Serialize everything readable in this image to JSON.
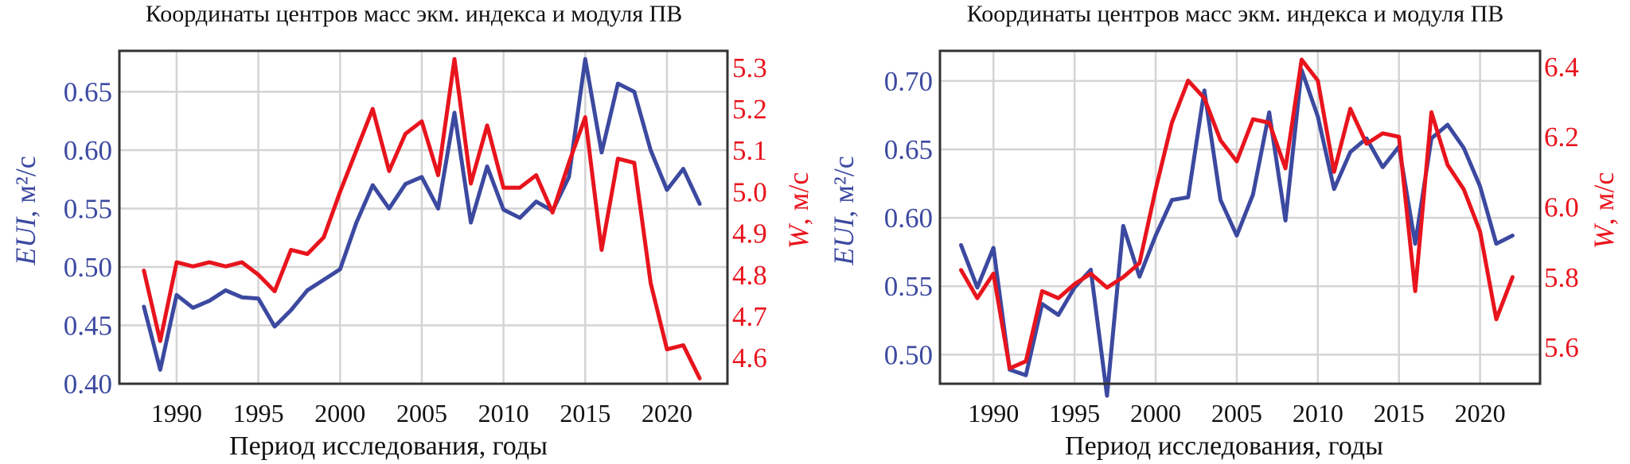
{
  "colors": {
    "left_series": "#3c49a0",
    "right_series": "#e8141d",
    "grid": "#d4d4d4",
    "text": "#111111"
  },
  "chart_data": [
    {
      "type": "line",
      "title": "Координаты центров масс экм. индекса и модуля ПВ",
      "xlabel": "Период исследования, годы",
      "ylabel_left_name": "EUI",
      "ylabel_left_unit": ", м²/с",
      "ylabel_right_name": "W",
      "ylabel_right_unit": ", м/с",
      "xlim": [
        1986.5,
        2023.7
      ],
      "ylim_left": [
        0.4,
        0.685
      ],
      "ylim_right": [
        4.537,
        5.34
      ],
      "x_ticks": [
        1990,
        1995,
        2000,
        2005,
        2010,
        2015,
        2020
      ],
      "y_left_ticks": [
        "0.40",
        "0.45",
        "0.50",
        "0.55",
        "0.60",
        "0.65"
      ],
      "y_right_ticks": [
        "4.6",
        "4.7",
        "4.8",
        "4.9",
        "5.0",
        "5.1",
        "5.2",
        "5.3"
      ],
      "x": [
        1988,
        1989,
        1990,
        1991,
        1992,
        1993,
        1994,
        1995,
        1996,
        1997,
        1998,
        1999,
        2000,
        2001,
        2002,
        2003,
        2004,
        2005,
        2006,
        2007,
        2008,
        2009,
        2010,
        2011,
        2012,
        2013,
        2014,
        2015,
        2016,
        2017,
        2018,
        2019,
        2020,
        2021,
        2022
      ],
      "series": [
        {
          "axis": "left",
          "values": [
            0.466,
            0.412,
            0.476,
            0.465,
            0.471,
            0.48,
            0.474,
            0.473,
            0.449,
            0.463,
            0.48,
            0.489,
            0.498,
            0.538,
            0.57,
            0.55,
            0.571,
            0.577,
            0.55,
            0.632,
            0.538,
            0.586,
            0.549,
            0.542,
            0.556,
            0.548,
            0.577,
            0.678,
            0.598,
            0.657,
            0.65,
            0.6,
            0.566,
            0.584,
            0.554
          ]
        },
        {
          "axis": "right",
          "values": [
            4.81,
            4.64,
            4.83,
            4.82,
            4.83,
            4.82,
            4.83,
            4.8,
            4.76,
            4.86,
            4.85,
            4.89,
            5.0,
            5.1,
            5.2,
            5.05,
            5.14,
            5.17,
            5.04,
            5.32,
            5.02,
            5.16,
            5.01,
            5.01,
            5.04,
            4.95,
            5.07,
            5.18,
            4.86,
            5.08,
            5.07,
            4.78,
            4.62,
            4.63,
            4.55
          ]
        }
      ]
    },
    {
      "type": "line",
      "title": "Координаты центров масс экм. индекса и модуля ПВ",
      "xlabel": "Период исследования, годы",
      "ylabel_left_name": "EUI",
      "ylabel_left_unit": ", м²/с",
      "ylabel_right_name": "W",
      "ylabel_right_unit": ", м/с",
      "xlim": [
        1986.7,
        2023.7
      ],
      "ylim_left": [
        0.4787,
        0.722
      ],
      "ylim_right": [
        5.496,
        6.445
      ],
      "x_ticks": [
        1990,
        1995,
        2000,
        2005,
        2010,
        2015,
        2020
      ],
      "y_left_ticks": [
        "0.50",
        "0.55",
        "0.60",
        "0.65",
        "0.70"
      ],
      "y_right_ticks": [
        "5.6",
        "5.8",
        "6.0",
        "6.2",
        "6.4"
      ],
      "x": [
        1988,
        1989,
        1990,
        1991,
        1992,
        1993,
        1994,
        1995,
        1996,
        1997,
        1998,
        1999,
        2000,
        2001,
        2002,
        2003,
        2004,
        2005,
        2006,
        2007,
        2008,
        2009,
        2010,
        2011,
        2012,
        2013,
        2014,
        2015,
        2016,
        2017,
        2018,
        2019,
        2020,
        2021,
        2022
      ],
      "series": [
        {
          "axis": "left",
          "values": [
            0.58,
            0.549,
            0.578,
            0.489,
            0.485,
            0.537,
            0.529,
            0.549,
            0.562,
            0.47,
            0.594,
            0.557,
            0.587,
            0.613,
            0.615,
            0.693,
            0.613,
            0.587,
            0.617,
            0.677,
            0.598,
            0.708,
            0.674,
            0.621,
            0.648,
            0.658,
            0.637,
            0.652,
            0.581,
            0.658,
            0.668,
            0.651,
            0.623,
            0.581,
            0.587
          ]
        },
        {
          "axis": "right",
          "values": [
            5.82,
            5.74,
            5.81,
            5.54,
            5.56,
            5.76,
            5.74,
            5.78,
            5.81,
            5.77,
            5.8,
            5.84,
            6.05,
            6.24,
            6.36,
            6.31,
            6.19,
            6.13,
            6.25,
            6.24,
            6.11,
            6.42,
            6.36,
            6.1,
            6.28,
            6.18,
            6.21,
            6.2,
            5.76,
            6.27,
            6.12,
            6.05,
            5.93,
            5.68,
            5.8
          ]
        }
      ]
    }
  ]
}
